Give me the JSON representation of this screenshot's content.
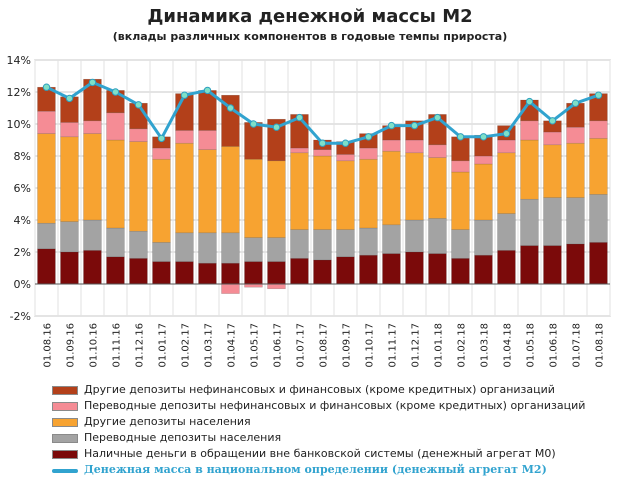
{
  "chart_data": {
    "type": "bar",
    "stacked": true,
    "title": "Динамика денежной массы М2",
    "subtitle": "(вклады различных компонентов в годовые темпы прироста)",
    "categories": [
      "01.08.16",
      "01.09.16",
      "01.10.16",
      "01.11.16",
      "01.12.16",
      "01.01.17",
      "01.02.17",
      "01.03.17",
      "01.04.17",
      "01.05.17",
      "01.06.17",
      "01.07.17",
      "01.08.17",
      "01.09.17",
      "01.10.17",
      "01.11.17",
      "01.12.17",
      "01.01.18",
      "01.02.18",
      "01.03.18",
      "01.04.18",
      "01.05.18",
      "01.06.18",
      "01.07.18",
      "01.08.18"
    ],
    "yticks": [
      "14%",
      "12%",
      "10%",
      "8%",
      "6%",
      "4%",
      "2%",
      "0%",
      "-2%"
    ],
    "ylim": [
      -2,
      14
    ],
    "grid": true,
    "legend_position": "bottom",
    "series": [
      {
        "name": "Наличные деньги в обращении вне банковской системы (денежный агрегат М0)",
        "color": "#7b0a0a",
        "values": [
          2.2,
          2.0,
          2.1,
          1.7,
          1.6,
          1.4,
          1.4,
          1.3,
          1.3,
          1.4,
          1.4,
          1.6,
          1.5,
          1.7,
          1.8,
          1.9,
          2.0,
          1.9,
          1.6,
          1.8,
          2.1,
          2.4,
          2.4,
          2.5,
          2.6
        ]
      },
      {
        "name": "Переводные депозиты населения",
        "color": "#a3a3a3",
        "values": [
          1.6,
          1.9,
          1.9,
          1.8,
          1.7,
          1.2,
          1.8,
          1.9,
          1.9,
          1.5,
          1.5,
          1.8,
          1.9,
          1.7,
          1.7,
          1.8,
          2.0,
          2.2,
          1.8,
          2.2,
          2.3,
          2.9,
          3.0,
          2.9,
          3.0
        ]
      },
      {
        "name": "Другие депозиты населения",
        "color": "#f7a331",
        "values": [
          5.6,
          5.3,
          5.4,
          5.5,
          5.6,
          5.2,
          5.6,
          5.2,
          5.4,
          4.9,
          4.8,
          4.8,
          4.6,
          4.3,
          4.3,
          4.6,
          4.2,
          3.8,
          3.6,
          3.5,
          3.8,
          3.7,
          3.3,
          3.4,
          3.5
        ]
      },
      {
        "name": "Переводные депозиты нефинансовых и финансовых (кроме кредитных)  организаций",
        "color": "#f58c95",
        "values": [
          1.4,
          0.9,
          0.8,
          1.7,
          0.8,
          0.7,
          0.8,
          1.2,
          -0.6,
          -0.2,
          -0.3,
          0.3,
          0.4,
          0.4,
          0.7,
          0.7,
          0.8,
          0.8,
          0.7,
          0.5,
          0.8,
          1.2,
          0.8,
          1.0,
          1.1
        ]
      },
      {
        "name": "Другие депозиты нефинансовых и финансовых (кроме кредитных)  организаций",
        "color": "#b3401a",
        "values": [
          1.5,
          1.6,
          2.6,
          1.4,
          1.6,
          0.7,
          2.3,
          2.5,
          3.2,
          2.3,
          2.6,
          2.1,
          0.6,
          0.8,
          0.9,
          0.9,
          1.2,
          1.9,
          1.5,
          1.3,
          0.9,
          1.3,
          0.7,
          1.5,
          1.7
        ]
      }
    ],
    "line_series": {
      "name": "Денежная масса в национальном  определении  (денежный агрегат  М2)",
      "color": "#31a3cf",
      "values": [
        12.3,
        11.6,
        12.6,
        12.0,
        11.2,
        9.1,
        11.8,
        12.1,
        11.0,
        10.0,
        9.8,
        10.4,
        8.8,
        8.8,
        9.2,
        9.9,
        9.9,
        10.4,
        9.2,
        9.2,
        9.4,
        11.4,
        10.2,
        11.3,
        11.8
      ]
    }
  }
}
